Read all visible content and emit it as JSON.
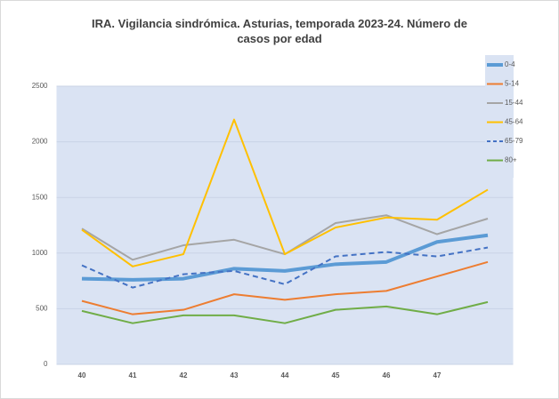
{
  "chart_data": {
    "type": "line",
    "title": "IRA. Vigilancia sindrómica. Asturias, temporada 2023-24. Número de casos por edad",
    "categories": [
      "40",
      "41",
      "42",
      "43",
      "44",
      "45",
      "46",
      "47",
      null
    ],
    "series": [
      {
        "name": "0-4",
        "color": "#5b9bd5",
        "line_width": 4,
        "dashed": false,
        "values": [
          770,
          760,
          770,
          860,
          840,
          900,
          920,
          1100,
          1160
        ]
      },
      {
        "name": "5-14",
        "color": "#ed7d31",
        "line_width": 2,
        "dashed": false,
        "values": [
          570,
          450,
          490,
          630,
          580,
          630,
          660,
          790,
          920
        ]
      },
      {
        "name": "15-44",
        "color": "#a5a5a5",
        "line_width": 2,
        "dashed": false,
        "values": [
          1220,
          940,
          1070,
          1120,
          990,
          1270,
          1340,
          1170,
          1310
        ]
      },
      {
        "name": "45-64",
        "color": "#ffc000",
        "line_width": 2,
        "dashed": false,
        "values": [
          1210,
          880,
          990,
          2200,
          990,
          1230,
          1320,
          1300,
          1570
        ]
      },
      {
        "name": "65-79",
        "color": "#4472c4",
        "line_width": 2,
        "dashed": true,
        "values": [
          890,
          690,
          810,
          840,
          720,
          970,
          1010,
          970,
          1050
        ]
      },
      {
        "name": "80+",
        "color": "#70ad47",
        "line_width": 2,
        "dashed": false,
        "values": [
          480,
          370,
          440,
          440,
          370,
          490,
          520,
          450,
          560
        ]
      }
    ],
    "ylim": [
      0,
      2500
    ],
    "yticks": [
      0,
      500,
      1000,
      1500,
      2000,
      2500
    ],
    "grid": true,
    "legend": "top-right"
  }
}
